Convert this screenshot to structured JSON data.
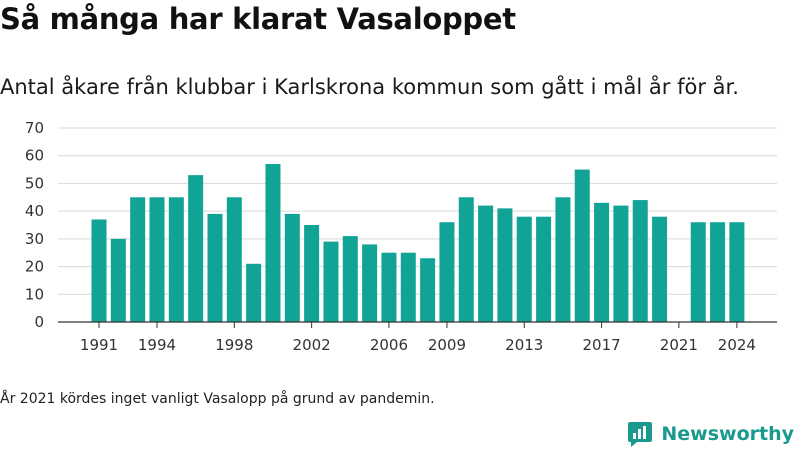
{
  "header": {
    "title": "Så många har klarat Vasaloppet",
    "subtitle": "Antal åkare från klubbar i Karlskrona kommun som gått i mål år för år."
  },
  "footer": {
    "note": "År 2021 kördes inget vanligt Vasalopp på grund av pandemin.",
    "brand": "Newsworthy",
    "brand_icon": "newsworthy-logo-icon"
  },
  "colors": {
    "bar": "#10a396",
    "grid": "#d9d9d9",
    "axis": "#333333",
    "brand": "#1a9a8e"
  },
  "chart_data": {
    "type": "bar",
    "categories": [
      1991,
      1992,
      1993,
      1994,
      1995,
      1996,
      1997,
      1998,
      1999,
      2000,
      2001,
      2002,
      2003,
      2004,
      2005,
      2006,
      2007,
      2008,
      2009,
      2010,
      2011,
      2012,
      2013,
      2014,
      2015,
      2016,
      2017,
      2018,
      2019,
      2020,
      2021,
      2022,
      2023,
      2024
    ],
    "values": [
      37,
      30,
      45,
      45,
      45,
      53,
      39,
      45,
      21,
      57,
      39,
      35,
      29,
      31,
      28,
      25,
      25,
      23,
      36,
      45,
      42,
      41,
      38,
      38,
      45,
      55,
      43,
      42,
      44,
      38,
      null,
      36,
      36,
      36
    ],
    "x_tick_labels": [
      "1991",
      "1994",
      "1998",
      "2002",
      "2006",
      "2009",
      "2013",
      "2017",
      "2021",
      "2024"
    ],
    "y_ticks": [
      0,
      10,
      20,
      30,
      40,
      50,
      60,
      70
    ],
    "ylim": [
      0,
      70
    ],
    "grid": true
  }
}
